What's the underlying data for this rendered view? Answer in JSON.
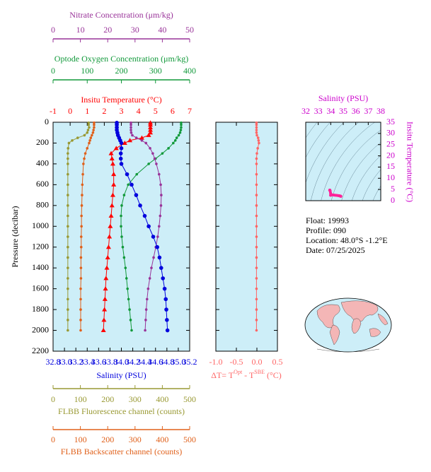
{
  "chart_data": [
    {
      "type": "profile",
      "y_label": "Pressure (decibar)",
      "ylim": [
        0,
        2200
      ],
      "y_reversed": true,
      "yticks": [
        0,
        200,
        400,
        600,
        800,
        1000,
        1200,
        1400,
        1600,
        1800,
        2000,
        2200
      ],
      "pressure": [
        5,
        25,
        50,
        75,
        100,
        125,
        150,
        175,
        200,
        250,
        300,
        350,
        400,
        500,
        600,
        700,
        800,
        900,
        1000,
        1100,
        1200,
        1300,
        1400,
        1500,
        1600,
        1700,
        1800,
        1900,
        2000
      ],
      "series": [
        {
          "name": "Insitu Temperature (°C)",
          "color": "#ff0000",
          "marker": "triangle",
          "xlim": [
            -1,
            7
          ],
          "xticks": [
            -1,
            0,
            1,
            2,
            3,
            4,
            5,
            6,
            7
          ],
          "values": [
            4.7,
            4.7,
            4.7,
            4.7,
            4.7,
            4.6,
            4.2,
            3.5,
            3.2,
            2.7,
            2.4,
            2.45,
            2.5,
            2.55,
            2.55,
            2.5,
            2.45,
            2.4,
            2.35,
            2.3,
            2.25,
            2.2,
            2.15,
            2.1,
            2.07,
            2.04,
            2.01,
            1.98,
            1.95
          ]
        },
        {
          "name": "Optode Oxygen Concentration (μm/kg)",
          "color": "#11993a",
          "marker": "dot",
          "xlim": [
            0,
            400
          ],
          "xticks": [
            0,
            100,
            200,
            300,
            400
          ],
          "values": [
            375,
            375,
            375,
            374,
            372,
            368,
            362,
            358,
            352,
            338,
            320,
            300,
            280,
            245,
            220,
            208,
            201,
            199,
            199,
            201,
            204,
            208,
            212,
            215,
            218,
            221,
            224,
            227,
            230
          ]
        },
        {
          "name": "Nitrate Concentration (μm/kg)",
          "color": "#993399",
          "marker": "dot",
          "xlim": [
            0,
            50
          ],
          "xticks": [
            0,
            10,
            20,
            30,
            40,
            50
          ],
          "values": [
            28.5,
            28.5,
            28.5,
            28.5,
            28.6,
            29,
            30.5,
            32.5,
            34,
            35.5,
            36.5,
            37.2,
            37.8,
            38.8,
            39.4,
            39.6,
            39.5,
            39.2,
            38.8,
            38.3,
            37.6,
            36.8,
            36,
            35.4,
            34.8,
            34.4,
            34.1,
            33.9,
            33.7
          ]
        },
        {
          "name": "Salinity (PSU)",
          "color": "#0000dd",
          "marker": "circle",
          "xlim": [
            32.8,
            35.2
          ],
          "xticks": [
            32.8,
            {
              "value": 33,
              "label": "33.0"
            },
            33.2,
            33.4,
            33.6,
            33.8,
            {
              "value": 34,
              "label": "34.0"
            },
            34.2,
            34.4,
            34.6,
            34.8,
            {
              "value": 35,
              "label": "35.0"
            },
            35.2
          ],
          "values": [
            33.92,
            33.92,
            33.92,
            33.92,
            33.93,
            33.94,
            33.96,
            33.98,
            34.0,
            34.0,
            33.99,
            33.99,
            34.0,
            34.1,
            34.18,
            34.26,
            34.33,
            34.41,
            34.48,
            34.56,
            34.63,
            34.67,
            34.7,
            34.73,
            34.76,
            34.78,
            34.79,
            34.8,
            34.81
          ]
        },
        {
          "name": "FLBB Fluorescence channel (counts)",
          "color": "#999933",
          "marker": "dot",
          "xlim": [
            0,
            500
          ],
          "xticks": [
            0,
            100,
            200,
            300,
            400,
            500
          ],
          "values": [
            130,
            130,
            132,
            128,
            125,
            115,
            90,
            70,
            58,
            55,
            54,
            54,
            54,
            54,
            54,
            54,
            54,
            54,
            54,
            54,
            54,
            54,
            54,
            54,
            54,
            54,
            54,
            54,
            54
          ]
        },
        {
          "name": "FLBB Backscatter channel (counts)",
          "color": "#e0601a",
          "marker": "dot",
          "xlim": [
            0,
            500
          ],
          "xticks": [
            0,
            100,
            200,
            300,
            400,
            500
          ],
          "values": [
            150,
            150,
            150,
            148,
            146,
            142,
            138,
            135,
            132,
            125,
            118,
            114,
            111,
            109,
            107,
            106,
            105,
            104,
            104,
            103,
            103,
            102,
            102,
            102,
            101,
            101,
            101,
            101,
            101
          ]
        }
      ]
    },
    {
      "type": "profile",
      "x_label": [
        "ΔT= T",
        "Opt",
        " - T",
        "SBE",
        " (°C)"
      ],
      "color": "#ff6666",
      "xlim": [
        -1,
        0.5
      ],
      "xticks": [
        {
          "value": -1,
          "label": "-1.0"
        },
        -0.5,
        {
          "value": 0,
          "label": "0.0"
        },
        0.5
      ],
      "values": [
        -0.01,
        -0.01,
        -0.01,
        -0.01,
        -0.01,
        0.0,
        0.03,
        0.04,
        0.05,
        0.02,
        0.0,
        -0.01,
        -0.01,
        -0.01,
        -0.01,
        -0.01,
        -0.01,
        -0.01,
        -0.01,
        -0.01,
        -0.01,
        -0.01,
        -0.01,
        -0.01,
        -0.01,
        -0.01,
        -0.01,
        -0.01,
        -0.01
      ]
    },
    {
      "type": "ts",
      "x_label": "Salinity (PSU)",
      "y_label": "Insitu Temperature (°C)",
      "color": "#cc00cc",
      "point_color": "#ff2299",
      "xlim": [
        32,
        38
      ],
      "xticks": [
        32,
        33,
        34,
        35,
        36,
        37,
        38
      ],
      "ylim": [
        0,
        35
      ],
      "yticks": [
        0,
        5,
        10,
        15,
        20,
        25,
        30,
        35
      ],
      "info": [
        "Float:  19993",
        "Profile:  090",
        "Location:  48.0°S  -1.2°E",
        "Date:  07/25/2025"
      ]
    }
  ]
}
